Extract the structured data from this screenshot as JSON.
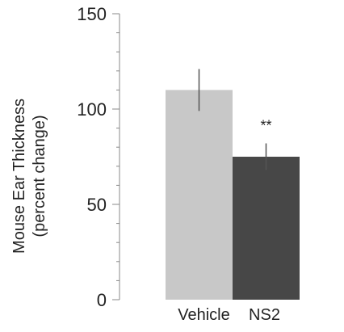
{
  "chart_data": {
    "type": "bar",
    "categories": [
      "Vehicle",
      "NS2"
    ],
    "values": [
      110,
      75
    ],
    "error": [
      11,
      7
    ],
    "bar_colors": [
      "#c8c8c8",
      "#474747"
    ],
    "ylabel_line1": "Mouse Ear Thickness",
    "ylabel_line2": "(percent change)",
    "ylim": [
      0,
      150
    ],
    "yticks": [
      0,
      50,
      100,
      150
    ],
    "ytick_labels": [
      "0",
      "50",
      "100",
      "150"
    ],
    "minor_tick_step": 10,
    "annotations": [
      {
        "category": "NS2",
        "text": "**"
      }
    ],
    "grid": false,
    "legend": "none"
  }
}
